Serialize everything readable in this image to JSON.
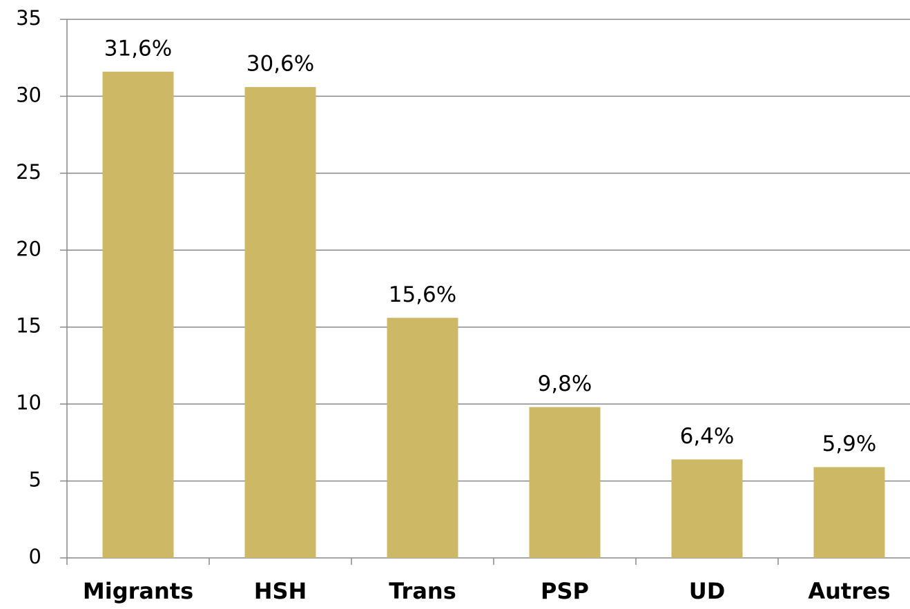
{
  "chart_data": {
    "type": "bar",
    "categories": [
      "Migrants",
      "HSH",
      "Trans",
      "PSP",
      "UD",
      "Autres"
    ],
    "values": [
      31.6,
      30.6,
      15.6,
      9.8,
      6.4,
      5.9
    ],
    "value_labels": [
      "31,6%",
      "30,6%",
      "15,6%",
      "9,8%",
      "6,4%",
      "5,9%"
    ],
    "color": "#cdb866",
    "ylim": [
      0,
      35
    ],
    "yticks": [
      0,
      5,
      10,
      15,
      20,
      25,
      30,
      35
    ],
    "grid": true
  }
}
